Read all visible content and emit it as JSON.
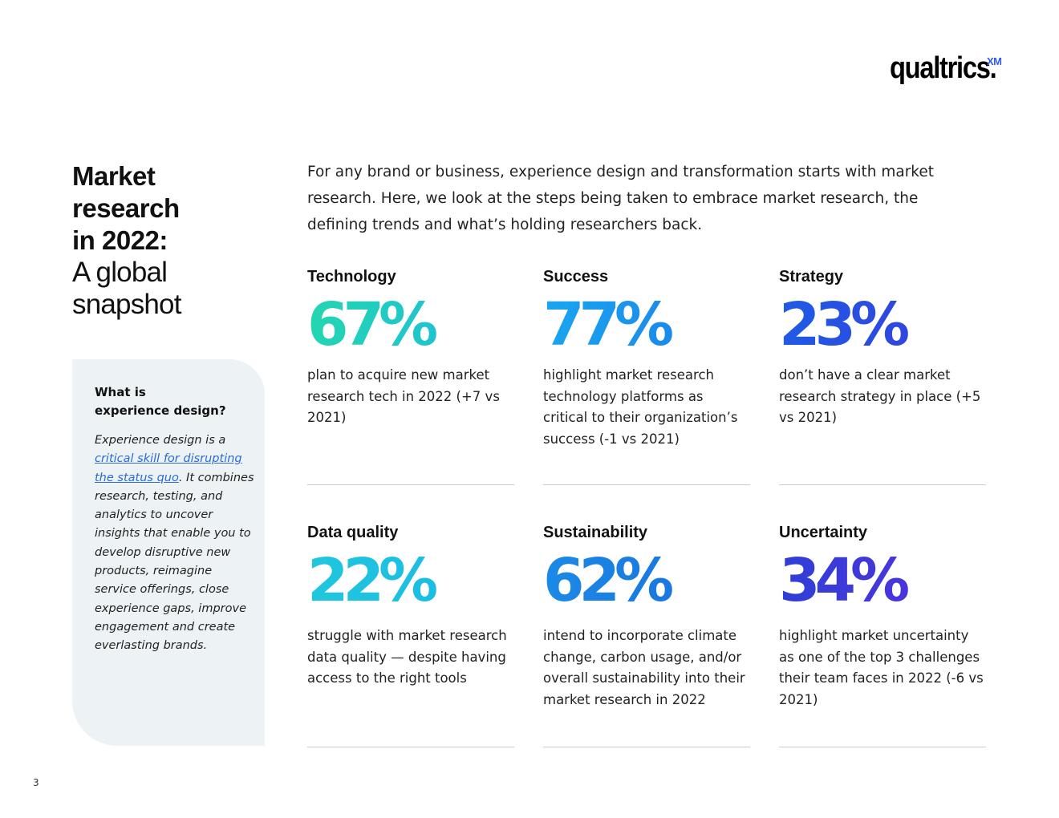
{
  "logo": {
    "word": "qualtrics.",
    "superscript": "XM"
  },
  "title": {
    "bold_lines": [
      "Market",
      "research",
      "in 2022:"
    ],
    "light_lines": [
      "A global",
      "snapshot"
    ]
  },
  "intro": "For any brand or business, experience design and transformation starts with market research. Here, we look at the steps being taken to embrace market research, the defining trends and what’s holding researchers back.",
  "sidebar": {
    "heading_lines": [
      "What is",
      "experience design?"
    ],
    "body_lead": "Experience design is a ",
    "link_text": "critical skill for disrupting the status quo",
    "body_rest": ". It combines research, testing, and analytics to uncover insights that enable you to develop disruptive new products, reimagine service offerings, close experience gaps, improve engagement and create everlasting brands."
  },
  "stats": [
    {
      "label": "Technology",
      "value": "67%",
      "desc": "plan to acquire new market research tech in 2022 (+7 vs 2021)",
      "gradient": [
        "#24d6b0",
        "#1bb9e0"
      ]
    },
    {
      "label": "Success",
      "value": "77%",
      "desc": "highlight market research technology platforms as critical to their organization’s success (-1 vs 2021)",
      "gradient": [
        "#1aa6f0",
        "#1c7ae8"
      ]
    },
    {
      "label": "Strategy",
      "value": "23%",
      "desc": "don’t have a clear market research strategy in place (+5 vs 2021)",
      "gradient": [
        "#1f5be6",
        "#3a3ad8"
      ]
    },
    {
      "label": "Data quality",
      "value": "22%",
      "desc": "struggle with market research data quality — despite having access to the right tools",
      "gradient": [
        "#20c7dc",
        "#1ab6e8"
      ]
    },
    {
      "label": "Sustainability",
      "value": "62%",
      "desc": "intend to incorporate climate change, carbon usage, and/or overall sustainability into their market research in 2022",
      "gradient": [
        "#1b8ae6",
        "#1a6cdc"
      ]
    },
    {
      "label": "Uncertainty",
      "value": "34%",
      "desc": "highlight market uncertainty as one of the top 3 challenges their team faces in 2022 (-6 vs 2021)",
      "gradient": [
        "#2f3fd6",
        "#5a2fe0"
      ]
    }
  ],
  "page_number": "3"
}
